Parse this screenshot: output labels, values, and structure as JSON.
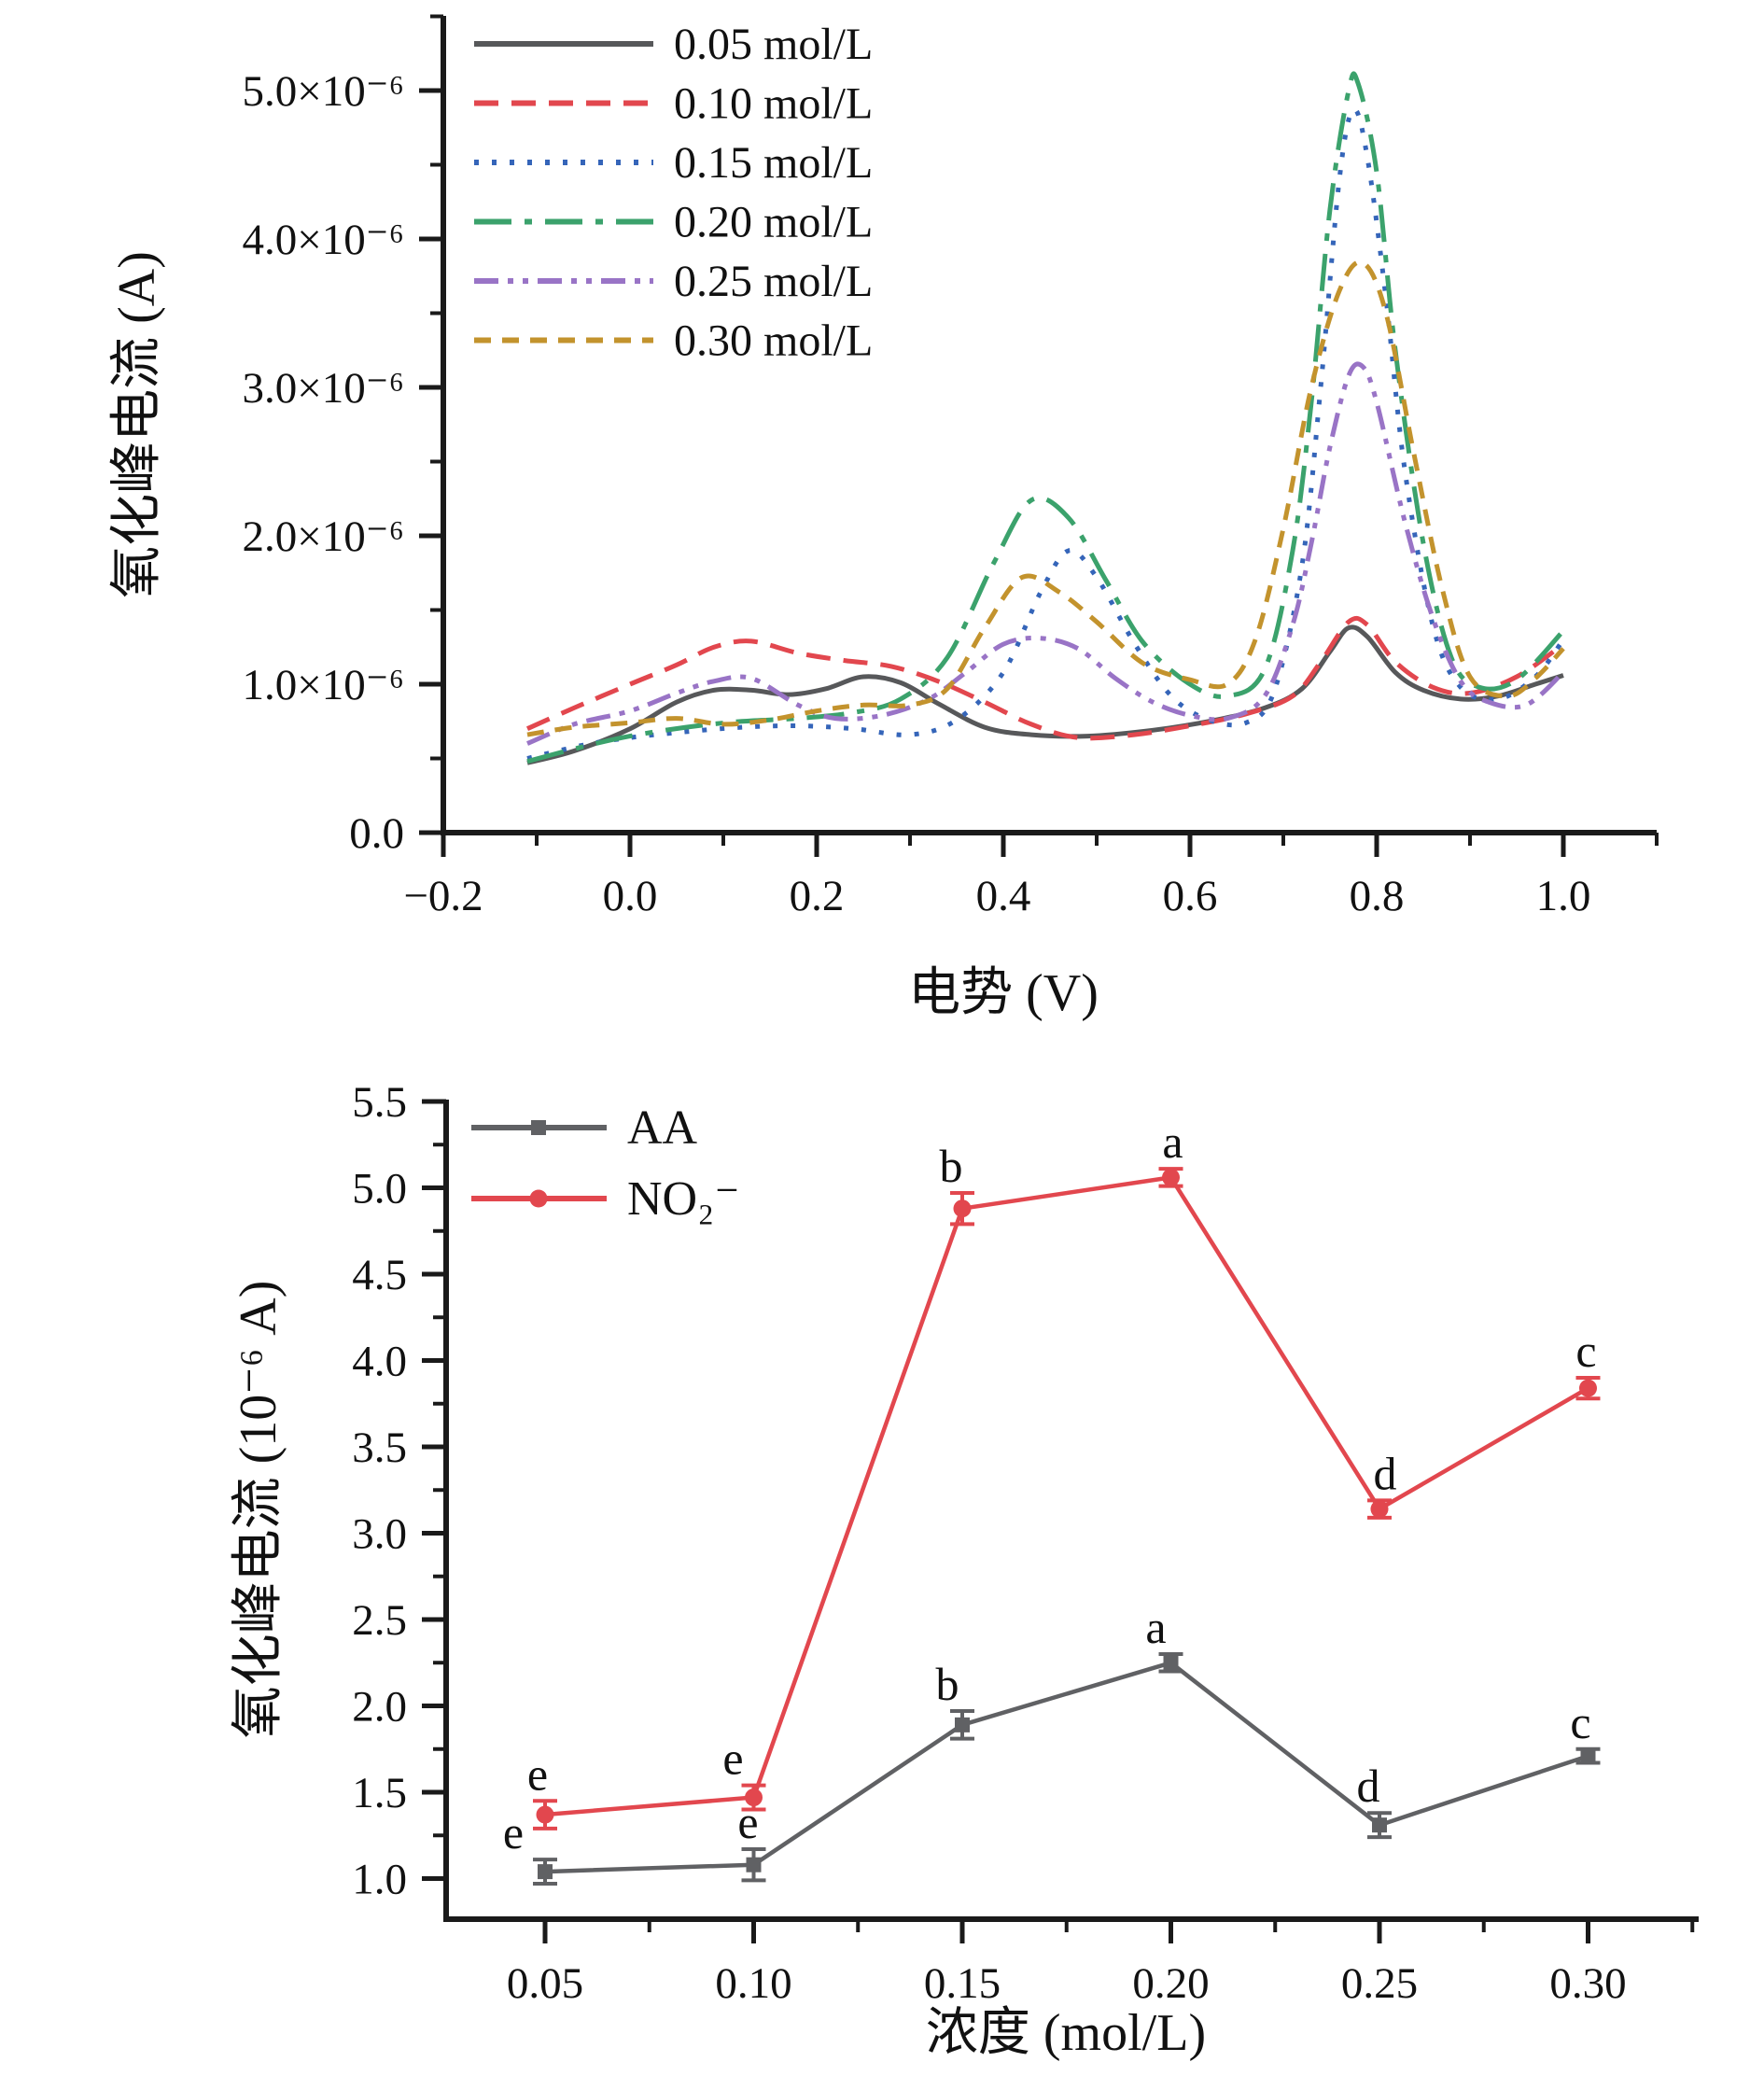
{
  "figure": {
    "description_colors": {
      "gray": "#57585a",
      "red": "#e2474e",
      "blue": "#3565b9",
      "green": "#3ba26c",
      "purple": "#9974c6",
      "dark_yellow": "#c3932d",
      "axis": "#1a1a1a"
    }
  },
  "chart_data": [
    {
      "type": "line",
      "title": "",
      "xlabel": "电势 (V)",
      "ylabel": "氧化峰电流 (A)",
      "y_unit": "A",
      "xlim": [
        -0.2,
        1.1
      ],
      "ylim_1e6": [
        0,
        5.5
      ],
      "grid": false,
      "legend_position": "top-left inside",
      "x_ticks": {
        "major": [
          -0.2,
          0.0,
          0.2,
          0.4,
          0.6,
          0.8,
          1.0
        ],
        "labels": [
          "−0.2",
          "0.0",
          "0.2",
          "0.4",
          "0.6",
          "0.8",
          "1.0"
        ],
        "minor": [
          -0.1,
          0.1,
          0.3,
          0.5,
          0.7,
          0.9,
          1.1
        ]
      },
      "y_ticks": {
        "major_1e6": [
          0,
          1,
          2,
          3,
          4,
          5
        ],
        "labels": [
          "0.0",
          "1.0×10⁻⁶",
          "2.0×10⁻⁶",
          "3.0×10⁻⁶",
          "4.0×10⁻⁶",
          "5.0×10⁻⁶"
        ],
        "minor_1e6": [
          0.5,
          1.5,
          2.5,
          3.5,
          4.5,
          5.5
        ]
      },
      "series": [
        {
          "name": "0.05 mol/L",
          "color": "#57585a",
          "dash": "",
          "width": 5,
          "points": [
            [
              -0.11,
              0.47
            ],
            [
              -0.06,
              0.55
            ],
            [
              0.0,
              0.7
            ],
            [
              0.05,
              0.88
            ],
            [
              0.09,
              0.96
            ],
            [
              0.13,
              0.96
            ],
            [
              0.17,
              0.93
            ],
            [
              0.21,
              0.97
            ],
            [
              0.25,
              1.05
            ],
            [
              0.29,
              1.01
            ],
            [
              0.33,
              0.87
            ],
            [
              0.38,
              0.71
            ],
            [
              0.43,
              0.66
            ],
            [
              0.49,
              0.65
            ],
            [
              0.56,
              0.69
            ],
            [
              0.62,
              0.75
            ],
            [
              0.68,
              0.84
            ],
            [
              0.72,
              0.97
            ],
            [
              0.75,
              1.22
            ],
            [
              0.77,
              1.38
            ],
            [
              0.79,
              1.32
            ],
            [
              0.82,
              1.08
            ],
            [
              0.85,
              0.96
            ],
            [
              0.89,
              0.9
            ],
            [
              0.93,
              0.92
            ],
            [
              0.97,
              1.0
            ],
            [
              1.0,
              1.06
            ]
          ]
        },
        {
          "name": "0.10 mol/L",
          "color": "#e2474e",
          "dash": "26 14",
          "width": 5,
          "points": [
            [
              -0.11,
              0.7
            ],
            [
              -0.06,
              0.84
            ],
            [
              0.0,
              1.0
            ],
            [
              0.05,
              1.13
            ],
            [
              0.09,
              1.25
            ],
            [
              0.13,
              1.29
            ],
            [
              0.18,
              1.21
            ],
            [
              0.23,
              1.16
            ],
            [
              0.28,
              1.12
            ],
            [
              0.33,
              1.02
            ],
            [
              0.38,
              0.88
            ],
            [
              0.43,
              0.73
            ],
            [
              0.48,
              0.64
            ],
            [
              0.54,
              0.66
            ],
            [
              0.6,
              0.72
            ],
            [
              0.66,
              0.8
            ],
            [
              0.71,
              0.92
            ],
            [
              0.74,
              1.15
            ],
            [
              0.77,
              1.42
            ],
            [
              0.79,
              1.4
            ],
            [
              0.82,
              1.15
            ],
            [
              0.86,
              0.98
            ],
            [
              0.9,
              0.94
            ],
            [
              0.95,
              1.05
            ],
            [
              1.0,
              1.27
            ]
          ]
        },
        {
          "name": "0.15 mol/L",
          "color": "#3565b9",
          "dash": "5 14",
          "width": 5,
          "points": [
            [
              -0.11,
              0.5
            ],
            [
              -0.05,
              0.59
            ],
            [
              0.0,
              0.64
            ],
            [
              0.06,
              0.68
            ],
            [
              0.12,
              0.71
            ],
            [
              0.18,
              0.72
            ],
            [
              0.24,
              0.7
            ],
            [
              0.3,
              0.66
            ],
            [
              0.35,
              0.76
            ],
            [
              0.4,
              1.08
            ],
            [
              0.44,
              1.62
            ],
            [
              0.47,
              1.9
            ],
            [
              0.5,
              1.72
            ],
            [
              0.54,
              1.28
            ],
            [
              0.58,
              0.92
            ],
            [
              0.62,
              0.76
            ],
            [
              0.66,
              0.74
            ],
            [
              0.69,
              0.95
            ],
            [
              0.72,
              1.8
            ],
            [
              0.74,
              3.0
            ],
            [
              0.76,
              4.4
            ],
            [
              0.775,
              4.87
            ],
            [
              0.79,
              4.55
            ],
            [
              0.81,
              3.6
            ],
            [
              0.83,
              2.45
            ],
            [
              0.86,
              1.4
            ],
            [
              0.89,
              0.98
            ],
            [
              0.93,
              0.9
            ],
            [
              0.97,
              1.05
            ],
            [
              1.0,
              1.3
            ]
          ]
        },
        {
          "name": "0.20 mol/L",
          "color": "#3ba26c",
          "dash": "40 14 8 14",
          "width": 5,
          "points": [
            [
              -0.11,
              0.48
            ],
            [
              -0.05,
              0.58
            ],
            [
              0.0,
              0.65
            ],
            [
              0.06,
              0.71
            ],
            [
              0.12,
              0.75
            ],
            [
              0.18,
              0.77
            ],
            [
              0.24,
              0.81
            ],
            [
              0.29,
              0.9
            ],
            [
              0.34,
              1.18
            ],
            [
              0.39,
              1.82
            ],
            [
              0.43,
              2.24
            ],
            [
              0.47,
              2.12
            ],
            [
              0.51,
              1.7
            ],
            [
              0.55,
              1.28
            ],
            [
              0.6,
              1.0
            ],
            [
              0.64,
              0.92
            ],
            [
              0.68,
              1.1
            ],
            [
              0.71,
              1.9
            ],
            [
              0.73,
              2.9
            ],
            [
              0.75,
              4.2
            ],
            [
              0.77,
              5.0
            ],
            [
              0.78,
              5.05
            ],
            [
              0.8,
              4.45
            ],
            [
              0.82,
              3.25
            ],
            [
              0.85,
              1.95
            ],
            [
              0.88,
              1.18
            ],
            [
              0.91,
              0.98
            ],
            [
              0.95,
              1.03
            ],
            [
              1.0,
              1.36
            ]
          ]
        },
        {
          "name": "0.25 mol/L",
          "color": "#9974c6",
          "dash": "26 10 6 10 6 10",
          "width": 5,
          "points": [
            [
              -0.11,
              0.6
            ],
            [
              -0.06,
              0.73
            ],
            [
              0.0,
              0.82
            ],
            [
              0.05,
              0.94
            ],
            [
              0.09,
              1.02
            ],
            [
              0.13,
              1.04
            ],
            [
              0.18,
              0.86
            ],
            [
              0.22,
              0.77
            ],
            [
              0.27,
              0.79
            ],
            [
              0.32,
              0.9
            ],
            [
              0.36,
              1.08
            ],
            [
              0.4,
              1.27
            ],
            [
              0.44,
              1.31
            ],
            [
              0.48,
              1.24
            ],
            [
              0.52,
              1.04
            ],
            [
              0.56,
              0.88
            ],
            [
              0.6,
              0.79
            ],
            [
              0.64,
              0.77
            ],
            [
              0.68,
              0.92
            ],
            [
              0.71,
              1.4
            ],
            [
              0.73,
              1.95
            ],
            [
              0.75,
              2.6
            ],
            [
              0.77,
              3.08
            ],
            [
              0.785,
              3.14
            ],
            [
              0.8,
              2.9
            ],
            [
              0.83,
              2.1
            ],
            [
              0.86,
              1.45
            ],
            [
              0.89,
              1.02
            ],
            [
              0.92,
              0.88
            ],
            [
              0.96,
              0.86
            ],
            [
              1.0,
              1.08
            ]
          ]
        },
        {
          "name": "0.30 mol/L",
          "color": "#c3932d",
          "dash": "18 12",
          "width": 5,
          "points": [
            [
              -0.11,
              0.66
            ],
            [
              -0.06,
              0.71
            ],
            [
              0.0,
              0.74
            ],
            [
              0.05,
              0.77
            ],
            [
              0.1,
              0.73
            ],
            [
              0.15,
              0.76
            ],
            [
              0.2,
              0.82
            ],
            [
              0.25,
              0.86
            ],
            [
              0.3,
              0.86
            ],
            [
              0.34,
              0.97
            ],
            [
              0.38,
              1.38
            ],
            [
              0.42,
              1.72
            ],
            [
              0.46,
              1.62
            ],
            [
              0.5,
              1.42
            ],
            [
              0.55,
              1.14
            ],
            [
              0.6,
              1.03
            ],
            [
              0.64,
              1.0
            ],
            [
              0.67,
              1.3
            ],
            [
              0.7,
              2.05
            ],
            [
              0.73,
              3.0
            ],
            [
              0.76,
              3.65
            ],
            [
              0.785,
              3.84
            ],
            [
              0.81,
              3.5
            ],
            [
              0.84,
              2.55
            ],
            [
              0.87,
              1.65
            ],
            [
              0.9,
              1.05
            ],
            [
              0.94,
              0.92
            ],
            [
              0.97,
              1.04
            ],
            [
              1.0,
              1.24
            ]
          ]
        }
      ]
    },
    {
      "type": "line",
      "subtype": "points with error bars",
      "title": "",
      "xlabel": "浓度 (mol/L)",
      "ylabel": "氧化峰电流 (10⁻⁶ A)",
      "xlim": [
        0.026,
        0.325
      ],
      "ylim": [
        0.77,
        5.5
      ],
      "grid": false,
      "legend_position": "top-left inside",
      "categories": [
        0.05,
        0.1,
        0.15,
        0.2,
        0.25,
        0.3
      ],
      "x_ticks": {
        "major": [
          0.05,
          0.1,
          0.15,
          0.2,
          0.25,
          0.3
        ],
        "labels": [
          "0.05",
          "0.10",
          "0.15",
          "0.20",
          "0.25",
          "0.30"
        ],
        "minor": [
          0.075,
          0.125,
          0.175,
          0.225,
          0.275,
          0.325
        ]
      },
      "y_ticks": {
        "major": [
          1.0,
          1.5,
          2.0,
          2.5,
          3.0,
          3.5,
          4.0,
          4.5,
          5.0,
          5.5
        ],
        "labels": [
          "1.0",
          "1.5",
          "2.0",
          "2.5",
          "3.0",
          "3.5",
          "4.0",
          "4.5",
          "5.0",
          "5.5"
        ],
        "minor": [
          1.25,
          1.75,
          2.25,
          2.75,
          3.25,
          3.75,
          4.25,
          4.75,
          5.25
        ]
      },
      "series": [
        {
          "name": "AA",
          "color": "#606164",
          "marker": "square",
          "values": [
            1.04,
            1.08,
            1.89,
            2.25,
            1.31,
            1.71
          ],
          "errors": [
            0.07,
            0.09,
            0.08,
            0.05,
            0.07,
            0.04
          ],
          "letters": [
            "e",
            "e",
            "b",
            "a",
            "d",
            "c"
          ],
          "letter_dx": [
            -34,
            -6,
            -16,
            -16,
            -12,
            -8
          ]
        },
        {
          "name": "NO₂⁻",
          "color": "#e2474e",
          "marker": "circle",
          "values": [
            1.37,
            1.47,
            4.88,
            5.06,
            3.14,
            3.84
          ],
          "errors": [
            0.08,
            0.07,
            0.09,
            0.05,
            0.05,
            0.06
          ],
          "letters": [
            "e",
            "e",
            "b",
            "a",
            "d",
            "c"
          ],
          "letter_dx": [
            -8,
            -22,
            -12,
            2,
            6,
            -2
          ]
        }
      ]
    }
  ]
}
